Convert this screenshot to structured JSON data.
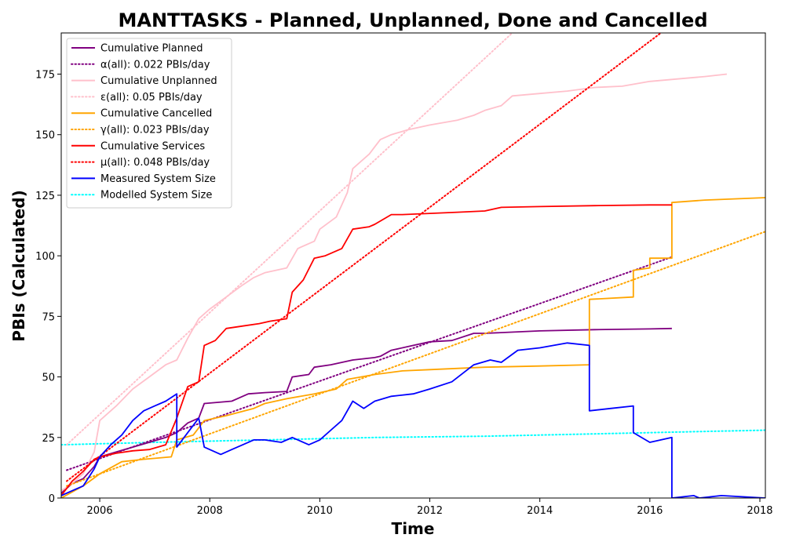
{
  "chart_data": {
    "type": "line",
    "title": "MANTTASKS - Planned, Unplanned, Done  and Cancelled",
    "xlabel": "Time",
    "ylabel": "PBIs (Calculated)",
    "xlim": [
      2005.3,
      2018.1
    ],
    "ylim": [
      0,
      192
    ],
    "x_ticks": [
      2006,
      2008,
      2010,
      2012,
      2014,
      2016,
      2018
    ],
    "x_tick_labels": [
      "2006",
      "2008",
      "2010",
      "2012",
      "2014",
      "2016",
      "2018"
    ],
    "y_ticks": [
      0,
      25,
      50,
      75,
      100,
      125,
      150,
      175
    ],
    "y_tick_labels": [
      "0",
      "25",
      "50",
      "75",
      "100",
      "125",
      "150",
      "175"
    ],
    "grid": false,
    "legend_position": "top-left",
    "series": [
      {
        "name": "Cumulative Planned",
        "color": "#800080",
        "style": "solid",
        "x": [
          2005.3,
          2005.5,
          2005.7,
          2005.9,
          2006.0,
          2006.3,
          2006.6,
          2006.9,
          2007.2,
          2007.4,
          2007.6,
          2007.8,
          2007.9,
          2008.4,
          2008.7,
          2009.0,
          2009.4,
          2009.5,
          2009.8,
          2009.9,
          2010.2,
          2010.6,
          2011.0,
          2011.1,
          2011.3,
          2011.7,
          2012.0,
          2012.4,
          2012.8,
          2013.0,
          2014.0,
          2015.0,
          2016.0,
          2016.4
        ],
        "y": [
          2,
          6,
          8,
          13,
          17,
          19,
          21,
          23,
          25,
          27,
          31,
          33,
          39,
          40,
          43,
          43.5,
          44,
          50,
          51,
          54,
          55,
          57,
          58,
          58.5,
          61,
          63,
          64.5,
          65,
          68,
          68,
          69,
          69.5,
          69.8,
          70
        ]
      },
      {
        "name": "α(all): 0.022 PBIs/day",
        "color": "#800080",
        "style": "dotted",
        "x": [
          2005.4,
          2016.4
        ],
        "y": [
          11.5,
          99.5
        ]
      },
      {
        "name": "Cumulative Unplanned",
        "color": "#ffc0cb",
        "style": "solid",
        "x": [
          2005.3,
          2005.5,
          2005.7,
          2005.9,
          2006.0,
          2006.3,
          2006.6,
          2006.9,
          2007.2,
          2007.4,
          2007.6,
          2007.8,
          2008.0,
          2008.3,
          2008.6,
          2008.8,
          2009.0,
          2009.4,
          2009.6,
          2009.9,
          2010.0,
          2010.3,
          2010.5,
          2010.6,
          2010.9,
          2011.0,
          2011.1,
          2011.3,
          2011.6,
          2012.0,
          2012.5,
          2012.8,
          2013.0,
          2013.3,
          2013.5,
          2014.0,
          2014.5,
          2015.0,
          2015.5,
          2016.0,
          2016.5,
          2017.0,
          2017.4
        ],
        "y": [
          3,
          6,
          10,
          19,
          32,
          38,
          45,
          50,
          55,
          57,
          66,
          74,
          78,
          83,
          88,
          91,
          93,
          95,
          103,
          106,
          111,
          116,
          126,
          136,
          142,
          145,
          148,
          150,
          152,
          154,
          156,
          158,
          160,
          162,
          166,
          167,
          168,
          169.5,
          170,
          172,
          173,
          174,
          175
        ]
      },
      {
        "name": "ε(all): 0.05 PBIs/day",
        "color": "#ffc0cb",
        "style": "dotted",
        "x": [
          2005.4,
          2013.5
        ],
        "y": [
          22,
          192
        ]
      },
      {
        "name": "Cumulative Cancelled",
        "color": "#ffa500",
        "style": "solid",
        "x": [
          2005.3,
          2005.7,
          2006.0,
          2006.4,
          2006.8,
          2007.3,
          2007.4,
          2007.7,
          2007.9,
          2008.3,
          2008.8,
          2009.0,
          2009.4,
          2009.9,
          2010.3,
          2010.5,
          2011.0,
          2011.5,
          2012.0,
          2013.0,
          2014.0,
          2014.9,
          2014.9,
          2015.7,
          2015.7,
          2016.0,
          2016.0,
          2016.4,
          2016.4,
          2017.0,
          2018.1
        ],
        "y": [
          0,
          5,
          10,
          15,
          16,
          17,
          24,
          26,
          32,
          34,
          37,
          39,
          41,
          43,
          45,
          49,
          51,
          52.5,
          53,
          54,
          54.5,
          55,
          82,
          83,
          94,
          95,
          99,
          99,
          122,
          123,
          124
        ]
      },
      {
        "name": "γ(all): 0.023 PBIs/day",
        "color": "#ffa500",
        "style": "dotted",
        "x": [
          2005.4,
          2018.1
        ],
        "y": [
          5,
          110
        ]
      },
      {
        "name": "Cumulative Services",
        "color": "#ff0000",
        "style": "solid",
        "x": [
          2005.3,
          2005.5,
          2005.7,
          2005.9,
          2006.0,
          2006.3,
          2006.6,
          2006.9,
          2007.2,
          2007.4,
          2007.6,
          2007.8,
          2007.9,
          2008.1,
          2008.3,
          2008.6,
          2008.9,
          2009.1,
          2009.4,
          2009.5,
          2009.7,
          2009.9,
          2010.1,
          2010.4,
          2010.6,
          2010.9,
          2011.0,
          2011.3,
          2011.5,
          2012.0,
          2012.5,
          2013.0,
          2013.3,
          2014.0,
          2015.0,
          2016.0,
          2016.4
        ],
        "y": [
          1,
          7,
          11,
          16,
          17,
          18.5,
          19.5,
          20,
          22,
          33,
          46,
          48,
          63,
          65,
          70,
          71,
          72,
          73,
          74,
          85,
          90,
          99,
          100,
          103,
          111,
          112,
          113,
          117,
          117,
          117.5,
          118,
          118.5,
          120,
          120.3,
          120.7,
          121,
          121
        ]
      },
      {
        "name": "μ(all): 0.048 PBIs/day",
        "color": "#ff0000",
        "style": "dotted",
        "x": [
          2005.4,
          2016.2
        ],
        "y": [
          7,
          192
        ]
      },
      {
        "name": "Measured System Size",
        "color": "#0000ff",
        "style": "solid",
        "x": [
          2005.3,
          2005.5,
          2005.7,
          2005.9,
          2006.0,
          2006.2,
          2006.4,
          2006.6,
          2006.8,
          2007.0,
          2007.2,
          2007.4,
          2007.4,
          2007.6,
          2007.8,
          2007.9,
          2008.0,
          2008.2,
          2008.4,
          2008.6,
          2008.8,
          2009.0,
          2009.3,
          2009.5,
          2009.8,
          2010.0,
          2010.2,
          2010.4,
          2010.6,
          2010.8,
          2011.0,
          2011.3,
          2011.7,
          2012.0,
          2012.4,
          2012.8,
          2013.1,
          2013.3,
          2013.6,
          2014.0,
          2014.5,
          2014.9,
          2014.9,
          2015.3,
          2015.7,
          2015.7,
          2016.0,
          2016.4,
          2016.4,
          2016.8,
          2016.9,
          2017.3,
          2018.1
        ],
        "y": [
          1,
          3,
          5,
          12,
          17,
          22,
          26,
          32,
          36,
          38,
          40,
          43,
          21,
          27,
          33,
          21,
          20,
          18,
          20,
          22,
          24,
          24,
          23,
          25,
          22,
          24,
          28,
          32,
          40,
          37,
          40,
          42,
          43,
          45,
          48,
          55,
          57,
          56,
          61,
          62,
          64,
          63,
          36,
          37,
          38,
          27,
          23,
          25,
          0,
          1,
          0,
          1,
          0
        ]
      },
      {
        "name": "Modelled System Size",
        "color": "#00ffff",
        "style": "dotted",
        "x": [
          2005.3,
          2007.0,
          2009.0,
          2011.0,
          2013.0,
          2015.0,
          2017.0,
          2018.1
        ],
        "y": [
          22,
          23,
          24,
          25,
          25.5,
          26.5,
          27.5,
          28
        ]
      }
    ]
  }
}
